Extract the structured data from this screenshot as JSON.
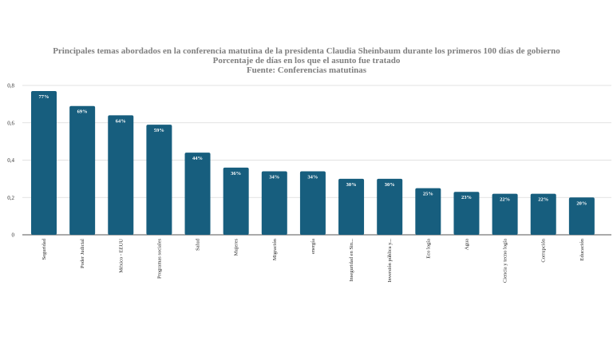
{
  "chart_data": {
    "type": "bar",
    "title": "Principales temas abordados en la conferencia matutina de la presidenta Claudia Sheinbaum durante los primeros 100 días de gobierno",
    "subtitle": "Porcentaje de días en los que el asunto fue tratado",
    "source": "Fuente: Conferencias matutinas",
    "xlabel": "",
    "ylabel": "",
    "ylim": [
      0,
      0.8
    ],
    "yticks": [
      "0",
      "0,2",
      "0,4",
      "0,6",
      "0,8"
    ],
    "ytick_values": [
      0,
      0.2,
      0.4,
      0.6,
      0.8
    ],
    "grid": true,
    "legend": "none",
    "bar_color": "#175e7e",
    "categories": [
      "Seguridad",
      "Poder Judicial",
      "México - EEUU",
      "Programas sociales",
      "Salud",
      "Mujeres",
      "Migración",
      "energía",
      "Inseguridad en Sin...",
      "Inversión pública y...",
      "Eco logía",
      "Agua",
      "Ciencia y tecno logía",
      "Corrupción",
      "Educación"
    ],
    "values": [
      0.77,
      0.69,
      0.64,
      0.59,
      0.44,
      0.36,
      0.34,
      0.34,
      0.3,
      0.3,
      0.25,
      0.23,
      0.22,
      0.22,
      0.2
    ],
    "data_labels": [
      "77%",
      "69%",
      "64%",
      "59%",
      "44%",
      "36%",
      "34%",
      "34%",
      "30%",
      "30%",
      "25%",
      "23%",
      "22%",
      "22%",
      "20%"
    ]
  }
}
